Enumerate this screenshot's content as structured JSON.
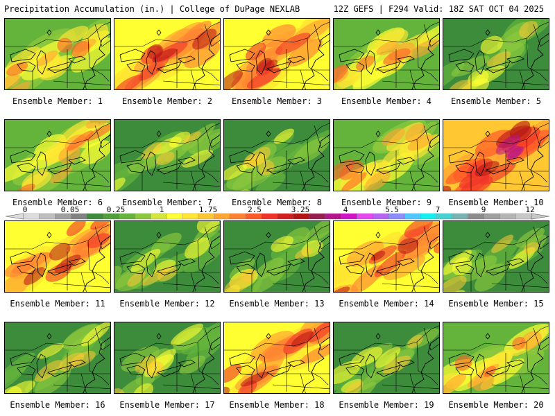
{
  "header": {
    "title": "Precipitation Accumulation (in.) | College of DuPage NEXLAB",
    "run_info": "12Z GEFS | F294 Valid: 18Z SAT OCT 04 2025"
  },
  "colorbar": {
    "tick_labels": [
      "0",
      "0.05",
      "0.25",
      "1",
      "1.75",
      "2.5",
      "3.25",
      "4",
      "5.5",
      "7",
      "9",
      "12"
    ],
    "colors": [
      "#dcdcdc",
      "#bebebe",
      "#a0a0a0",
      "#828282",
      "#3c8c3c",
      "#50a03c",
      "#64b43c",
      "#8cc83c",
      "#d2e63c",
      "#ffff32",
      "#ffe632",
      "#ffc832",
      "#ffa532",
      "#ff8232",
      "#ff5a28",
      "#f03228",
      "#d21e1e",
      "#b41414",
      "#961e50",
      "#b4148c",
      "#d214c8",
      "#e646f0",
      "#b464f0",
      "#8c8cff",
      "#50c8ff",
      "#14f0f0",
      "#46d2d2",
      "#78b4b4",
      "#8c8c8c",
      "#a0a0a0",
      "#b4b4b4",
      "#c8c8c8"
    ]
  },
  "panels": [
    {
      "label": "Ensemble Member: 1"
    },
    {
      "label": "Ensemble Member: 2"
    },
    {
      "label": "Ensemble Member: 3"
    },
    {
      "label": "Ensemble Member: 4"
    },
    {
      "label": "Ensemble Member: 5"
    },
    {
      "label": "Ensemble Member: 6"
    },
    {
      "label": "Ensemble Member: 7"
    },
    {
      "label": "Ensemble Member: 8"
    },
    {
      "label": "Ensemble Member: 9"
    },
    {
      "label": "Ensemble Member: 10"
    },
    {
      "label": "Ensemble Member: 11"
    },
    {
      "label": "Ensemble Member: 12"
    },
    {
      "label": "Ensemble Member: 13"
    },
    {
      "label": "Ensemble Member: 14"
    },
    {
      "label": "Ensemble Member: 15"
    },
    {
      "label": "Ensemble Member: 16"
    },
    {
      "label": "Ensemble Member: 17"
    },
    {
      "label": "Ensemble Member: 18"
    },
    {
      "label": "Ensemble Member: 19"
    },
    {
      "label": "Ensemble Member: 20"
    }
  ],
  "panel_intensity": [
    "moderate",
    "high",
    "high",
    "moderate",
    "low",
    "moderate",
    "low",
    "low",
    "moderate",
    "extreme",
    "high",
    "low",
    "low",
    "high",
    "low",
    "low",
    "low",
    "high",
    "low",
    "moderate"
  ]
}
